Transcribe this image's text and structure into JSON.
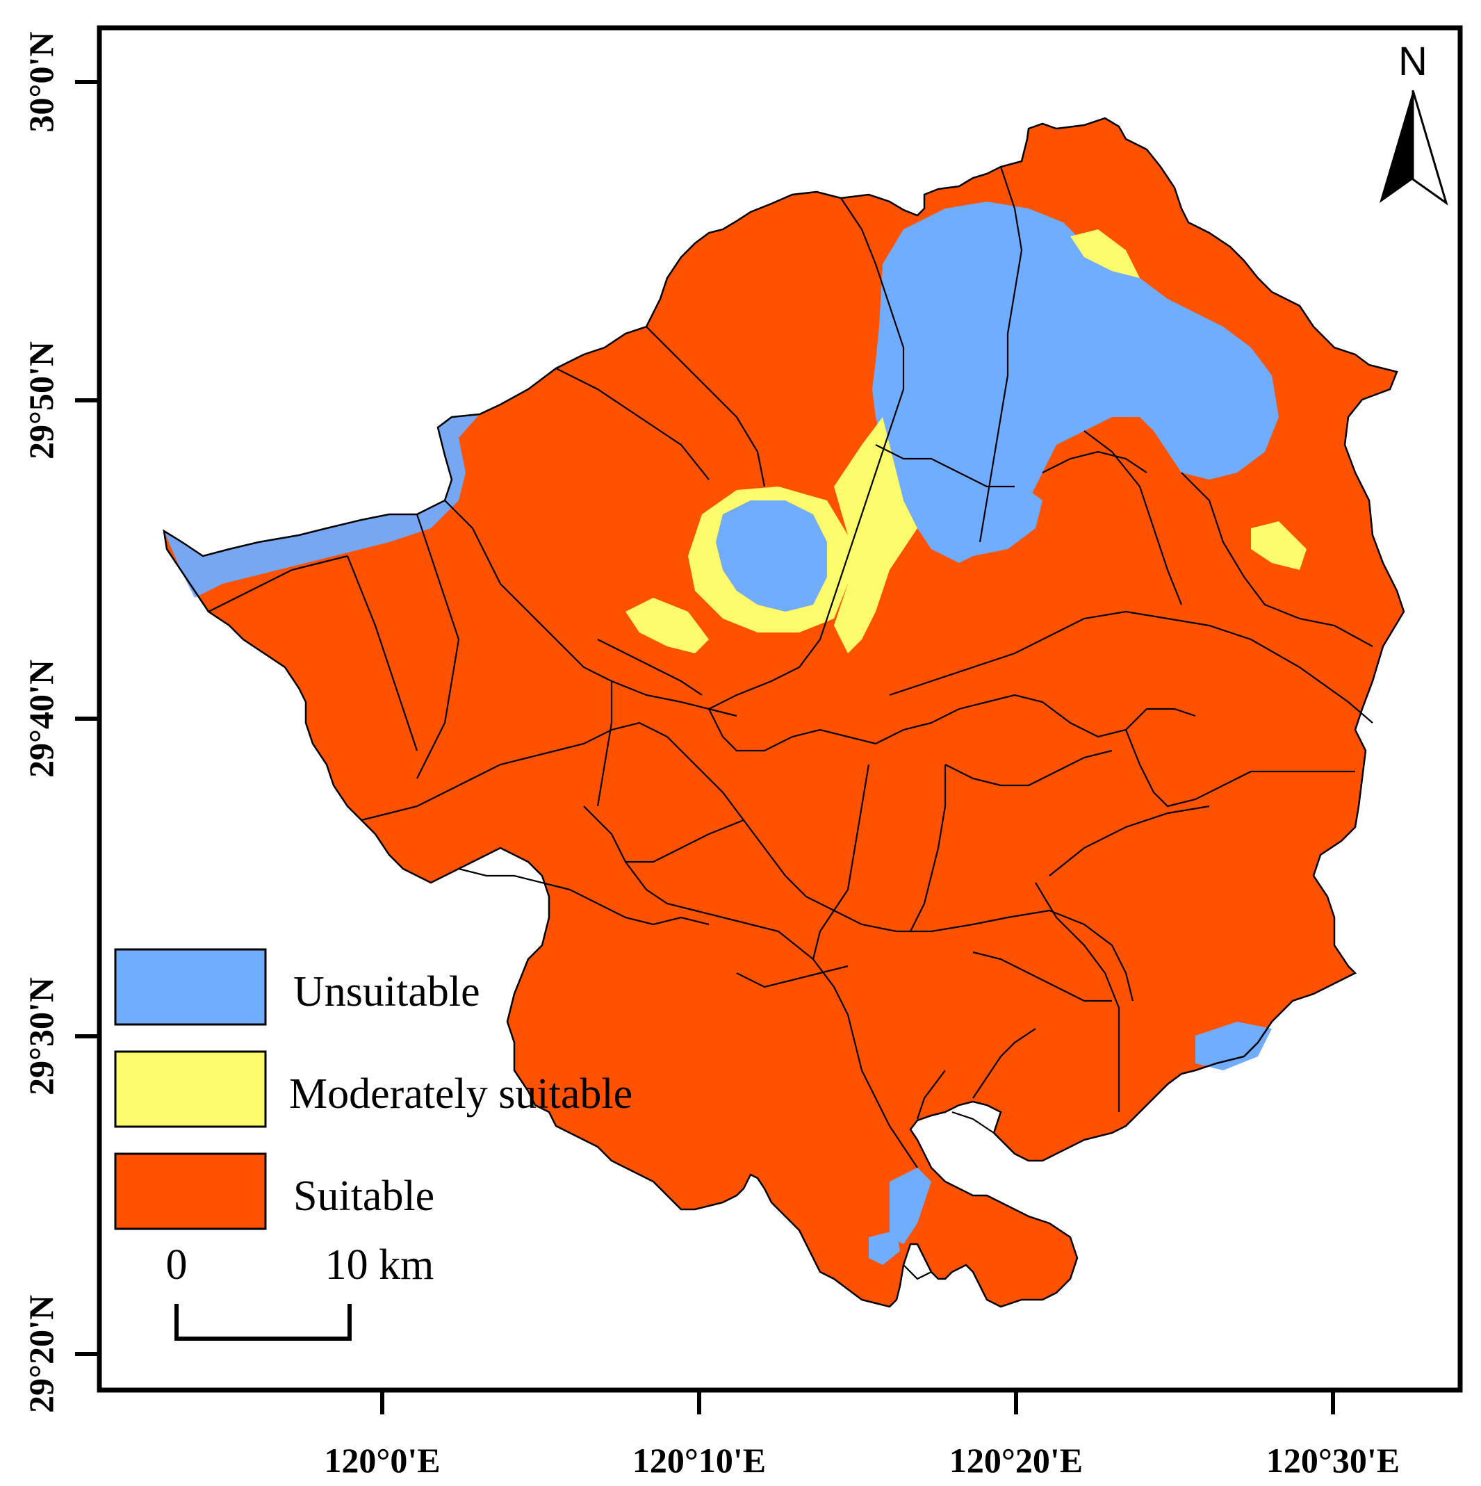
{
  "colors": {
    "unsuitable": "#70acff",
    "moderately_suitable": "#fbfb6c",
    "suitable": "#ff5200",
    "boundary": "#000000",
    "frame": "#000000"
  },
  "map": {
    "north_arrow_label": "N",
    "x_ticks": [
      "120°0'E",
      "120°10'E",
      "120°20'E",
      "120°30'E"
    ],
    "y_ticks": [
      "30°0'N",
      "29°50'N",
      "29°40'N",
      "29°30'N",
      "29°20'N"
    ],
    "legend": {
      "items": [
        {
          "label": "Unsuitable",
          "color": "#70acff"
        },
        {
          "label": "Moderately suitable",
          "color": "#fbfb6c"
        },
        {
          "label": "Suitable",
          "color": "#ff5200"
        }
      ]
    },
    "scale_bar": {
      "start_label": "0",
      "end_label": "10 km"
    }
  }
}
